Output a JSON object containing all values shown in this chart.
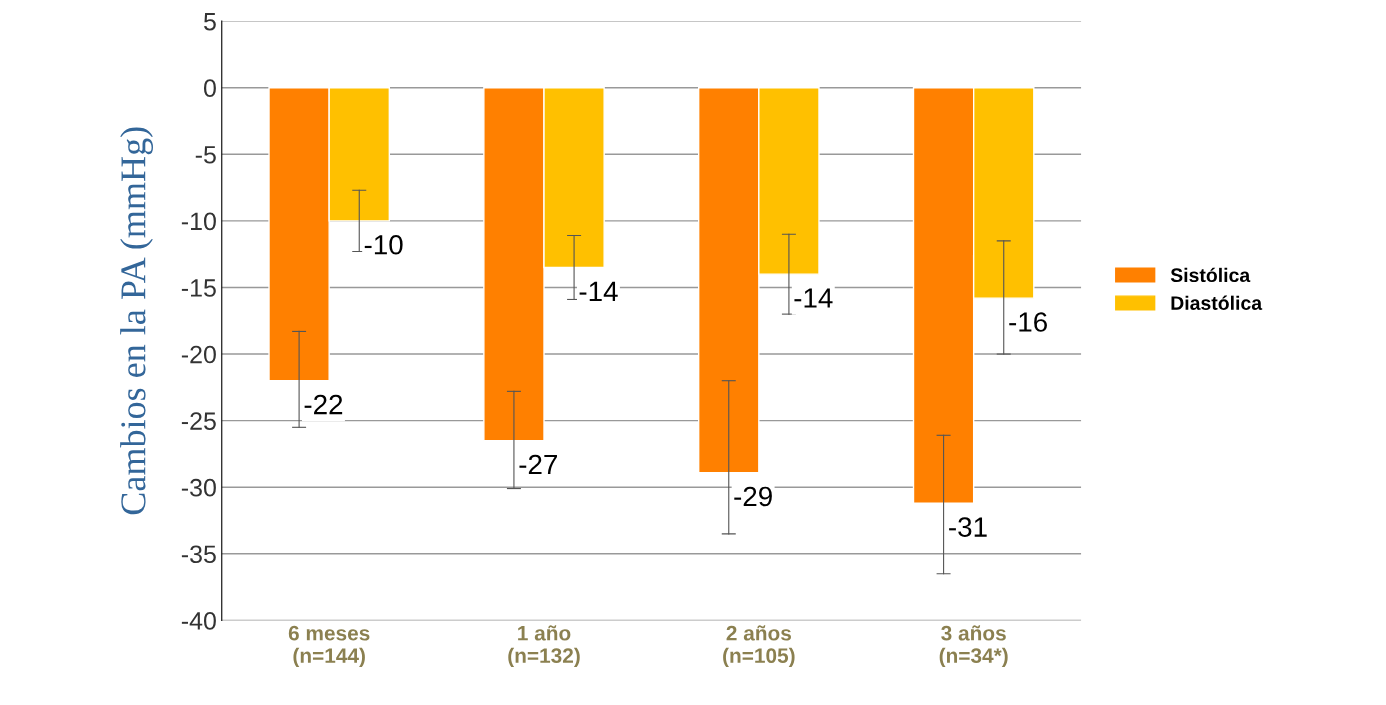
{
  "chart_data": {
    "type": "bar",
    "ylabel": "Cambios en la PA (mmHg)",
    "categories": [
      "6 meses\n(n=144)",
      "1 año\n(n=132)",
      "2 años\n(n=105)",
      "3 años\n(n=34*)"
    ],
    "series": [
      {
        "name": "Sistólica",
        "color": "#ff8000",
        "values": [
          -22,
          -26.5,
          -28.9,
          -31.2
        ],
        "errors": [
          [
            -25.5,
            -18.3
          ],
          [
            -30.1,
            -22.8
          ],
          [
            -33.5,
            -22.0
          ],
          [
            -36.5,
            -26.1
          ]
        ],
        "value_labels": [
          "-22",
          "-27",
          "-29",
          "-31"
        ]
      },
      {
        "name": "Diastólica",
        "color": "#ffc000",
        "values": [
          -10,
          -13.5,
          -14.0,
          -15.8
        ],
        "errors": [
          [
            -12.3,
            -7.7
          ],
          [
            -15.9,
            -11.1
          ],
          [
            -17.0,
            -11.0
          ],
          [
            -20.0,
            -11.5
          ]
        ],
        "value_labels": [
          "-10",
          "-14",
          "-14",
          "-16"
        ]
      }
    ],
    "ylim": [
      -40,
      5
    ],
    "yticks": [
      -40,
      -35,
      -30,
      -25,
      -20,
      -15,
      -10,
      -5,
      0,
      5
    ],
    "grid": "y",
    "legend": "right"
  }
}
